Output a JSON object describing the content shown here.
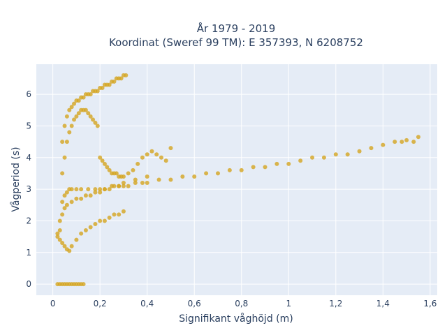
{
  "chart_data": {
    "type": "scatter",
    "title": [
      "År 1979 - 2019",
      "Koordinat (Sweref 99 TM): E 357393, N 6208752"
    ],
    "xlabel": "Signifikant våghöjd (m)",
    "ylabel": "Vågperiod (s)",
    "xlim": [
      -0.07,
      1.63
    ],
    "ylim": [
      -0.35,
      6.95
    ],
    "xticks": [
      0,
      0.2,
      0.4,
      0.6,
      0.8,
      1,
      1.2,
      1.4,
      1.6
    ],
    "xtick_labels": [
      "0",
      "0,2",
      "0,4",
      "0,6",
      "0,8",
      "1",
      "1,2",
      "1,4",
      "1,6"
    ],
    "yticks": [
      0,
      1,
      2,
      3,
      4,
      5,
      6
    ],
    "ytick_labels": [
      "0",
      "1",
      "2",
      "3",
      "4",
      "5",
      "6"
    ],
    "grid": true,
    "legend": "none",
    "colors": {
      "marker": "#d4a521",
      "plot_bg": "#e5ecf6",
      "grid": "#ffffff",
      "text": "#2a3f5f"
    },
    "series": [
      {
        "x": [
          0.02,
          0.03,
          0.04,
          0.05,
          0.06,
          0.07,
          0.08,
          0.09,
          0.1,
          0.11,
          0.12,
          0.13,
          0.02,
          0.02,
          0.03,
          0.03,
          0.04,
          0.05,
          0.06,
          0.07,
          0.08,
          0.1,
          0.12,
          0.14,
          0.16,
          0.18,
          0.2,
          0.22,
          0.24,
          0.26,
          0.28,
          0.3,
          0.03,
          0.04,
          0.05,
          0.06,
          0.08,
          0.1,
          0.12,
          0.14,
          0.16,
          0.18,
          0.2,
          0.22,
          0.24,
          0.26,
          0.28,
          0.3,
          0.35,
          0.4,
          0.04,
          0.05,
          0.06,
          0.07,
          0.08,
          0.1,
          0.12,
          0.15,
          0.18,
          0.2,
          0.22,
          0.25,
          0.28,
          0.3,
          0.32,
          0.35,
          0.38,
          0.4,
          0.45,
          0.5,
          0.55,
          0.6,
          0.65,
          0.7,
          0.75,
          0.8,
          0.85,
          0.9,
          0.95,
          1.0,
          1.05,
          1.1,
          1.15,
          1.2,
          1.25,
          1.3,
          1.35,
          1.4,
          1.45,
          1.48,
          1.5,
          1.53,
          1.55,
          0.04,
          0.05,
          0.06,
          0.07,
          0.08,
          0.09,
          0.1,
          0.11,
          0.12,
          0.13,
          0.14,
          0.15,
          0.16,
          0.17,
          0.18,
          0.19,
          0.2,
          0.21,
          0.22,
          0.23,
          0.24,
          0.25,
          0.26,
          0.27,
          0.28,
          0.29,
          0.3,
          0.31,
          0.04,
          0.05,
          0.06,
          0.07,
          0.08,
          0.09,
          0.1,
          0.11,
          0.12,
          0.13,
          0.14,
          0.15,
          0.16,
          0.17,
          0.18,
          0.19,
          0.2,
          0.21,
          0.22,
          0.23,
          0.24,
          0.25,
          0.26,
          0.27,
          0.28,
          0.29,
          0.3,
          0.32,
          0.34,
          0.36,
          0.38,
          0.4,
          0.42,
          0.44,
          0.46,
          0.48,
          0.5
        ],
        "y": [
          0,
          0,
          0,
          0,
          0,
          0,
          0,
          0,
          0,
          0,
          0,
          0,
          1.5,
          1.6,
          1.4,
          1.7,
          1.3,
          1.2,
          1.1,
          1.05,
          1.2,
          1.4,
          1.6,
          1.7,
          1.8,
          1.9,
          2.0,
          2.0,
          2.1,
          2.2,
          2.2,
          2.3,
          2.0,
          2.2,
          2.4,
          2.5,
          2.6,
          2.7,
          2.7,
          2.8,
          2.8,
          2.9,
          2.9,
          3.0,
          3.0,
          3.1,
          3.1,
          3.2,
          3.3,
          3.4,
          2.6,
          2.8,
          2.9,
          3.0,
          3.0,
          3.0,
          3.0,
          3.0,
          3.0,
          3.0,
          3.0,
          3.1,
          3.1,
          3.1,
          3.1,
          3.2,
          3.2,
          3.2,
          3.3,
          3.3,
          3.4,
          3.4,
          3.5,
          3.5,
          3.6,
          3.6,
          3.7,
          3.7,
          3.8,
          3.8,
          3.9,
          4.0,
          4.0,
          4.1,
          4.1,
          4.2,
          4.3,
          4.4,
          4.5,
          4.5,
          4.55,
          4.5,
          4.65,
          4.5,
          5.0,
          5.3,
          5.5,
          5.6,
          5.7,
          5.8,
          5.8,
          5.9,
          5.9,
          6.0,
          6.0,
          6.0,
          6.1,
          6.1,
          6.1,
          6.2,
          6.2,
          6.3,
          6.3,
          6.3,
          6.4,
          6.4,
          6.5,
          6.5,
          6.5,
          6.6,
          6.6,
          3.5,
          4.0,
          4.5,
          4.8,
          5.0,
          5.2,
          5.3,
          5.4,
          5.5,
          5.5,
          5.5,
          5.4,
          5.3,
          5.2,
          5.1,
          5.0,
          4.0,
          3.9,
          3.8,
          3.7,
          3.6,
          3.5,
          3.5,
          3.5,
          3.4,
          3.4,
          3.4,
          3.5,
          3.6,
          3.8,
          4.0,
          4.1,
          4.2,
          4.1,
          4.0,
          3.9,
          4.3
        ]
      }
    ]
  }
}
